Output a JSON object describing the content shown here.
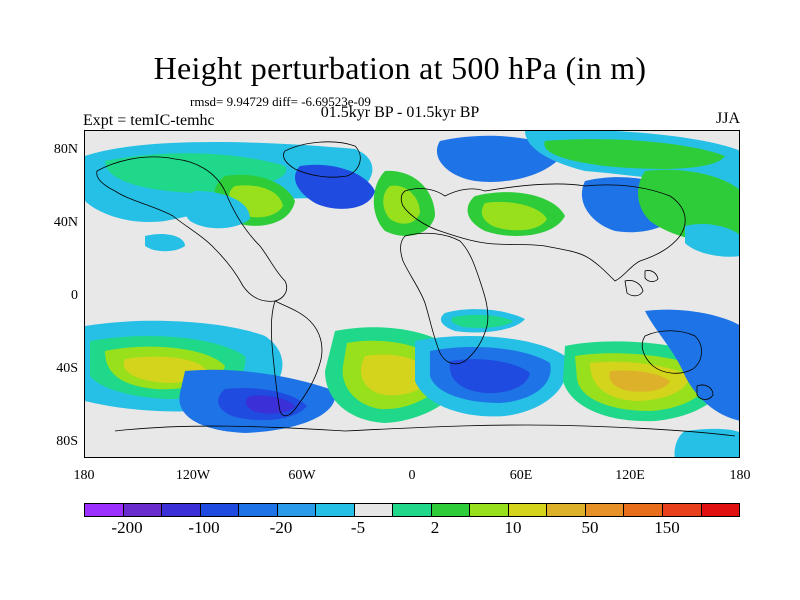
{
  "title": "Height perturbation at 500 hPa (in m)",
  "stats": "rmsd= 9.94729 diff= -6.69523e-09",
  "period": "01.5kyr BP - 01.5kyr BP",
  "experiment": "Expt = temIC-temhc",
  "season": "JJA",
  "axes": {
    "y_ticks": [
      "80N",
      "40N",
      "0",
      "40S",
      "80S"
    ],
    "x_ticks": [
      "180",
      "120W",
      "60W",
      "0",
      "60E",
      "120E",
      "180"
    ]
  },
  "colorbar": {
    "colors": [
      "#9b30ff",
      "#6a2ccc",
      "#3b2fd8",
      "#1f4be0",
      "#1e74e6",
      "#2a9be8",
      "#26c0e6",
      "#e6e6e6",
      "#20d889",
      "#2fcc3a",
      "#98e01c",
      "#d4d41c",
      "#ddb12a",
      "#e79229",
      "#e86e1c",
      "#e8401c",
      "#e01010"
    ],
    "labels": [
      "-200",
      "-100",
      "-20",
      "-5",
      "2",
      "10",
      "50",
      "150"
    ]
  }
}
